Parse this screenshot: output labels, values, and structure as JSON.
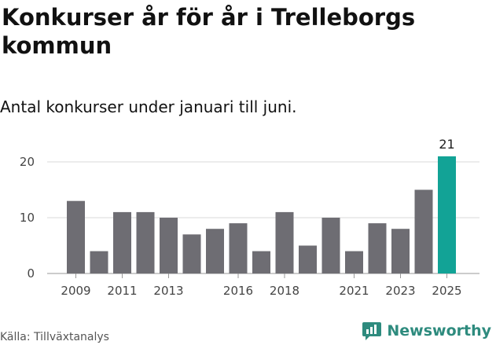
{
  "chart_data": {
    "type": "bar",
    "title": "Konkurser år för år i Trelleborgs kommun",
    "subtitle": "Antal konkurser under januari till juni.",
    "categories": [
      "2009",
      "2010",
      "2011",
      "2012",
      "2013",
      "2014",
      "2015",
      "2016",
      "2017",
      "2018",
      "2019",
      "2020",
      "2021",
      "2022",
      "2023",
      "2024",
      "2025"
    ],
    "values": [
      13,
      4,
      11,
      11,
      10,
      7,
      8,
      9,
      4,
      11,
      5,
      10,
      4,
      9,
      8,
      15,
      21
    ],
    "xticks": [
      "2009",
      "2011",
      "2013",
      "2016",
      "2018",
      "2021",
      "2023",
      "2025"
    ],
    "yticks": [
      0,
      10,
      20
    ],
    "ylim": [
      0,
      24
    ],
    "highlight_label": "21",
    "grid": true,
    "colors": {
      "bar": "#6e6d73",
      "highlight": "#12a396",
      "grid": "#d9d9d9"
    }
  },
  "source": "Källa: Tillväxtanalys",
  "brand": "Newsworthy",
  "brand_icon": "newsworthy-logo-icon"
}
